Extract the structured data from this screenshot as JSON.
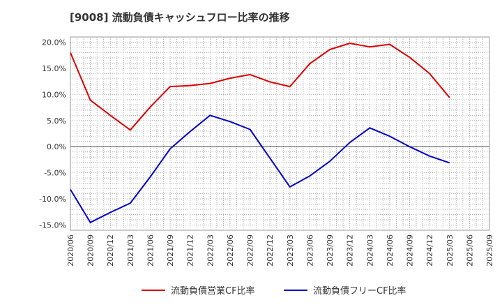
{
  "chart_data": {
    "type": "line",
    "title": "[9008]  流動負債キャッシュフロー比率の推移",
    "xlabel": "",
    "ylabel": "",
    "ylim": [
      -16,
      21
    ],
    "yticks": [
      20,
      15,
      10,
      5,
      0,
      -5,
      -10,
      -15
    ],
    "ytick_labels": [
      "20.0%",
      "15.0%",
      "10.0%",
      "5.0%",
      "0.0%",
      "-5.0%",
      "-10.0%",
      "-15.0%"
    ],
    "categories": [
      "2020/06",
      "2020/09",
      "2020/12",
      "2021/03",
      "2021/06",
      "2021/09",
      "2021/12",
      "2022/03",
      "2022/06",
      "2022/09",
      "2022/12",
      "2023/03",
      "2023/06",
      "2023/09",
      "2023/12",
      "2024/03",
      "2024/06",
      "2024/09",
      "2024/12",
      "2025/03",
      "2025/06",
      "2025/09"
    ],
    "grid": true,
    "legend_position": "bottom",
    "series": [
      {
        "name": "流動負債営業CF比率",
        "color": "#dd0000",
        "values": [
          18.0,
          8.9,
          6.0,
          3.2,
          7.6,
          11.5,
          11.7,
          12.1,
          13.1,
          13.8,
          12.4,
          11.5,
          15.9,
          18.6,
          19.8,
          19.1,
          19.6,
          17.1,
          14.0,
          9.4,
          null,
          null
        ]
      },
      {
        "name": "流動負債フリーCF比率",
        "color": "#0000cc",
        "values": [
          -8.2,
          -14.5,
          -12.6,
          -10.8,
          -5.8,
          -0.4,
          2.9,
          6.0,
          4.8,
          3.3,
          -2.2,
          -7.7,
          -5.6,
          -2.8,
          0.8,
          3.6,
          2.0,
          0.0,
          -1.8,
          -3.1,
          null,
          null
        ]
      }
    ]
  }
}
